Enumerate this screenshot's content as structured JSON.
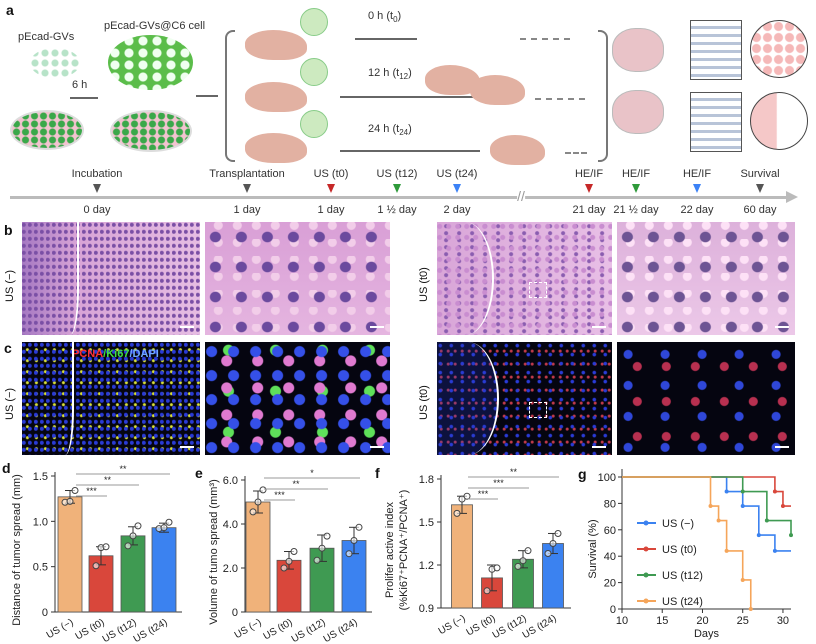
{
  "panel_letters": {
    "a": "a",
    "b": "b",
    "c": "c",
    "d": "d",
    "e": "e",
    "f": "f",
    "g": "g"
  },
  "schematic": {
    "pecad_gvs": "pEcad-GVs",
    "pecad_gvs_c6": "pEcad-GVs@C6 cell",
    "incubation_time": "6 h",
    "groups": [
      {
        "label": "0 h (t",
        "sub": "0",
        "end": ")"
      },
      {
        "label": "12 h (t",
        "sub": "12",
        "end": ")"
      },
      {
        "label": "24 h (t",
        "sub": "24",
        "end": ")"
      }
    ]
  },
  "timeline": {
    "events": [
      {
        "label": "Incubation",
        "day": "0 day",
        "color": "#555555"
      },
      {
        "label": "Transplantation",
        "day": "1 day",
        "color": "#555555"
      },
      {
        "label": "US (t0)",
        "day": "1 day",
        "color": "#c62828"
      },
      {
        "label": "US (t12)",
        "day": "1 ½ day",
        "color": "#2e9a3a"
      },
      {
        "label": "US (t24)",
        "day": "2 day",
        "color": "#3b82f6"
      },
      {
        "label": "HE/IF",
        "day": "21 day",
        "color": "#c62828"
      },
      {
        "label": "HE/IF",
        "day": "21 ½ day",
        "color": "#2e9a3a"
      },
      {
        "label": "HE/IF",
        "day": "22 day",
        "color": "#3b82f6"
      },
      {
        "label": "Survival",
        "day": "60 day",
        "color": "#555555"
      }
    ],
    "break_mark": "//"
  },
  "histology": {
    "row_b_left_label": "US (−)",
    "row_b_right_label": "US (t0)",
    "row_c_left_label": "US (−)",
    "row_c_right_label": "US (t0)",
    "stain_pcna": "PCNA",
    "stain_ki67": "/Ki67",
    "stain_dapi": "/DAPI",
    "stain_colors": {
      "pcna": "#ff3030",
      "ki67": "#40e040",
      "dapi": "#6fa8ff"
    }
  },
  "chart_data": [
    {
      "type": "bar",
      "panel": "d",
      "categories": [
        "US (−)",
        "US (t0)",
        "US (t12)",
        "US (t24)"
      ],
      "values": [
        1.27,
        0.62,
        0.84,
        0.93
      ],
      "errors": [
        0.07,
        0.1,
        0.1,
        0.05
      ],
      "points": [
        [
          1.21,
          1.22,
          1.34
        ],
        [
          0.51,
          0.71,
          0.72
        ],
        [
          0.73,
          0.84,
          0.95
        ],
        [
          0.92,
          0.93,
          0.99
        ]
      ],
      "colors": [
        "#f0b27a",
        "#d9473b",
        "#3f9a52",
        "#3b82f0"
      ],
      "ylabel": "Distance of tumor spread (mm)",
      "ylim": [
        0,
        1.5
      ],
      "yticks": [
        "0",
        "0.5",
        "1.0",
        "1.5"
      ],
      "ytick_values": [
        0,
        0.5,
        1.0,
        1.5
      ],
      "significance": [
        {
          "from": 0,
          "to": 1,
          "label": "***"
        },
        {
          "from": 0,
          "to": 2,
          "label": "**"
        },
        {
          "from": 0,
          "to": 3,
          "label": "**"
        }
      ]
    },
    {
      "type": "bar",
      "panel": "e",
      "categories": [
        "US (−)",
        "US (t0)",
        "US (t12)",
        "US (t24)"
      ],
      "values": [
        5.0,
        2.35,
        2.9,
        3.25
      ],
      "errors": [
        0.5,
        0.4,
        0.6,
        0.6
      ],
      "points": [
        [
          4.55,
          5.0,
          5.55
        ],
        [
          2.0,
          2.3,
          2.75
        ],
        [
          2.35,
          2.9,
          3.45
        ],
        [
          2.65,
          3.25,
          3.85
        ]
      ],
      "colors": [
        "#f0b27a",
        "#d9473b",
        "#3f9a52",
        "#3b82f0"
      ],
      "ylabel": "Volume of tumo spread (mm³)",
      "ylim": [
        0,
        6.0
      ],
      "yticks": [
        "0",
        "2.0",
        "4.0",
        "6.0"
      ],
      "ytick_values": [
        0,
        2,
        4,
        6
      ],
      "significance": [
        {
          "from": 0,
          "to": 1,
          "label": "***"
        },
        {
          "from": 0,
          "to": 2,
          "label": "**"
        },
        {
          "from": 0,
          "to": 3,
          "label": "*"
        }
      ]
    },
    {
      "type": "bar",
      "panel": "f",
      "categories": [
        "US (−)",
        "US (t0)",
        "US (t12)",
        "US (t24)"
      ],
      "values": [
        1.62,
        1.11,
        1.24,
        1.35
      ],
      "errors": [
        0.06,
        0.09,
        0.06,
        0.07
      ],
      "points": [
        [
          1.56,
          1.66,
          1.68
        ],
        [
          1.02,
          1.17,
          1.18
        ],
        [
          1.19,
          1.23,
          1.3
        ],
        [
          1.28,
          1.35,
          1.42
        ]
      ],
      "colors": [
        "#f0b27a",
        "#d9473b",
        "#3f9a52",
        "#3b82f0"
      ],
      "ylabel": "Prolifer  active  index",
      "ylabel2": "(%Ki67⁺PCNA⁺/PCNA⁺)",
      "ylim": [
        0.9,
        1.8
      ],
      "yticks": [
        "0.9",
        "1.2",
        "1.5",
        "1.8"
      ],
      "ytick_values": [
        0.9,
        1.2,
        1.5,
        1.8
      ],
      "significance": [
        {
          "from": 0,
          "to": 1,
          "label": "***"
        },
        {
          "from": 0,
          "to": 2,
          "label": "***"
        },
        {
          "from": 0,
          "to": 3,
          "label": "**"
        }
      ]
    },
    {
      "type": "line",
      "panel": "g",
      "step": true,
      "xlabel": "Days",
      "ylabel": "Survival (%)",
      "xlim": [
        10,
        31
      ],
      "ylim": [
        0,
        100
      ],
      "xticks": [
        "10",
        "15",
        "20",
        "25",
        "30"
      ],
      "xtick_values": [
        10,
        15,
        20,
        25,
        30
      ],
      "yticks": [
        "0",
        "20",
        "40",
        "60",
        "80",
        "100"
      ],
      "ytick_values": [
        0,
        20,
        40,
        60,
        80,
        100
      ],
      "legend": "center-left",
      "series": [
        {
          "name": "US (−)",
          "color": "#3b82f0",
          "x": [
            10,
            23,
            25,
            27,
            29,
            31
          ],
          "y": [
            100,
            89,
            78,
            56,
            44,
            44
          ]
        },
        {
          "name": "US (t0)",
          "color": "#d9473b",
          "x": [
            10,
            29,
            30,
            31
          ],
          "y": [
            100,
            89,
            78,
            78
          ]
        },
        {
          "name": "US (t12)",
          "color": "#3f9a52",
          "x": [
            10,
            25,
            28,
            31
          ],
          "y": [
            100,
            89,
            67,
            56
          ]
        },
        {
          "name": "US (t24)",
          "color": "#f5a55a",
          "x": [
            10,
            21,
            22,
            23,
            25,
            26
          ],
          "y": [
            100,
            78,
            67,
            44,
            22,
            0
          ]
        }
      ]
    }
  ]
}
